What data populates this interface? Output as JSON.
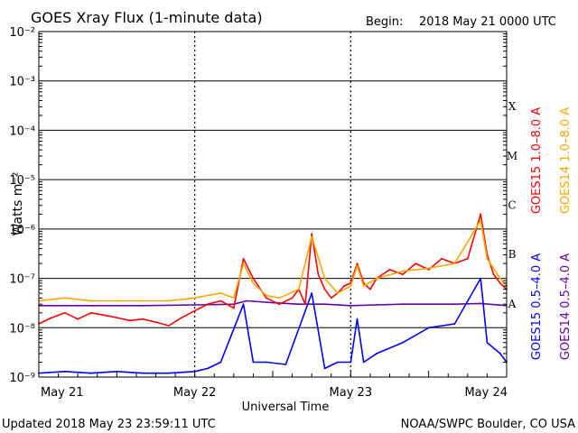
{
  "header": {
    "title": "GOES Xray Flux (1-minute data)",
    "begin_label": "Begin:",
    "begin_value": "2018 May 21 0000 UTC"
  },
  "footer": {
    "updated": "Updated 2018 May 23 23:59:11 UTC",
    "credit": "NOAA/SWPC Boulder, CO USA"
  },
  "colors": {
    "goes15_long": "#ff0000",
    "goes14_long": "#ffa500",
    "goes15_short": "#0000ff",
    "goes14_short": "#6600aa",
    "grid": "#000000"
  },
  "chart_data": {
    "type": "line",
    "title": "GOES Xray Flux (1-minute data)",
    "xlabel": "Universal Time",
    "ylabel": "Watts m⁻²",
    "yscale": "log",
    "ylim": [
      1e-09,
      0.01
    ],
    "xlim": [
      0,
      72
    ],
    "x_unit": "hours since 2018 May 21 0000 UTC",
    "x_ticks": [
      {
        "x": 0,
        "label": "May 21"
      },
      {
        "x": 24,
        "label": "May 22"
      },
      {
        "x": 48,
        "label": "May 23"
      },
      {
        "x": 72,
        "label": "May 24"
      }
    ],
    "y_ticks": [
      {
        "exp": -9,
        "label": "10⁻⁹"
      },
      {
        "exp": -8,
        "label": "10⁻⁸"
      },
      {
        "exp": -7,
        "label": "10⁻⁷"
      },
      {
        "exp": -6,
        "label": "10⁻⁶"
      },
      {
        "exp": -5,
        "label": "10⁻⁵"
      },
      {
        "exp": -4,
        "label": "10⁻⁴"
      },
      {
        "exp": -3,
        "label": "10⁻³"
      },
      {
        "exp": -2,
        "label": "10⁻²"
      }
    ],
    "flare_classes": [
      {
        "label": "A",
        "value": 1e-08
      },
      {
        "label": "B",
        "value": 1e-07
      },
      {
        "label": "C",
        "value": 1e-06
      },
      {
        "label": "M",
        "value": 1e-05
      },
      {
        "label": "X",
        "value": 0.0001
      }
    ],
    "grid": true,
    "series": [
      {
        "name": "GOES15 1.0–8.0 A",
        "color": "#ff0000",
        "x": [
          0,
          2,
          4,
          6,
          8,
          10,
          12,
          14,
          16,
          18,
          20,
          22,
          24,
          26,
          28,
          30,
          31.5,
          33,
          35,
          37,
          39,
          40,
          41,
          42,
          43,
          44,
          45,
          46,
          47,
          48,
          49,
          50,
          51,
          52,
          54,
          56,
          58,
          60,
          62,
          64,
          66,
          68,
          69,
          70,
          71,
          72
        ],
        "values": [
          1.2e-08,
          1.6e-08,
          2e-08,
          1.5e-08,
          2e-08,
          1.8e-08,
          1.6e-08,
          1.4e-08,
          1.5e-08,
          1.3e-08,
          1.1e-08,
          1.6e-08,
          2.2e-08,
          3e-08,
          3.5e-08,
          2.5e-08,
          2.5e-07,
          1e-07,
          4e-08,
          3e-08,
          4e-08,
          6e-08,
          3e-08,
          8e-07,
          1.2e-07,
          6e-08,
          4e-08,
          5e-08,
          7e-08,
          8e-08,
          2e-07,
          8e-08,
          6e-08,
          1e-07,
          1.5e-07,
          1.2e-07,
          2e-07,
          1.5e-07,
          2.5e-07,
          2e-07,
          2.5e-07,
          2e-06,
          3e-07,
          1.2e-07,
          8e-08,
          6e-08
        ]
      },
      {
        "name": "GOES14 1.0–8.0 A",
        "color": "#ffa500",
        "x": [
          0,
          4,
          8,
          12,
          16,
          20,
          24,
          26,
          28,
          30,
          31.5,
          33,
          35,
          37,
          40,
          42,
          44,
          46,
          48,
          49,
          50,
          52,
          56,
          60,
          64,
          68,
          69,
          71,
          72
        ],
        "values": [
          3.5e-08,
          4e-08,
          3.5e-08,
          3.5e-08,
          3.5e-08,
          3.5e-08,
          4e-08,
          4.5e-08,
          5e-08,
          4e-08,
          2e-07,
          8e-08,
          4.5e-08,
          4e-08,
          6e-08,
          7e-07,
          1e-07,
          5e-08,
          7e-08,
          1.8e-07,
          7e-08,
          1e-07,
          1.4e-07,
          1.6e-07,
          2e-07,
          1.5e-06,
          2.5e-07,
          1e-07,
          7e-08
        ]
      },
      {
        "name": "GOES15 0.5–4.0 A",
        "color": "#0000ff",
        "x": [
          0,
          4,
          8,
          12,
          16,
          20,
          24,
          26,
          28,
          31.5,
          33,
          35,
          38,
          42,
          44,
          46,
          48,
          49,
          50,
          52,
          56,
          60,
          64,
          68,
          69,
          71,
          72
        ],
        "values": [
          1.2e-09,
          1.3e-09,
          1.2e-09,
          1.3e-09,
          1.2e-09,
          1.2e-09,
          1.3e-09,
          1.5e-09,
          2e-09,
          3e-08,
          2e-09,
          2e-09,
          1.8e-09,
          5e-08,
          1.5e-09,
          2e-09,
          2e-09,
          1.5e-08,
          2e-09,
          3e-09,
          5e-09,
          1e-08,
          1.2e-08,
          1e-07,
          5e-09,
          3e-09,
          2e-09
        ]
      },
      {
        "name": "GOES14 0.5–4.0 A",
        "color": "#6600aa",
        "x": [
          0,
          8,
          16,
          24,
          30,
          32,
          36,
          40,
          44,
          48,
          52,
          56,
          60,
          64,
          68,
          72
        ],
        "values": [
          2.8e-08,
          2.8e-08,
          2.8e-08,
          2.9e-08,
          3e-08,
          3.5e-08,
          3.2e-08,
          3e-08,
          3e-08,
          2.8e-08,
          2.9e-08,
          3e-08,
          3e-08,
          3e-08,
          3.1e-08,
          2.8e-08
        ]
      }
    ]
  }
}
